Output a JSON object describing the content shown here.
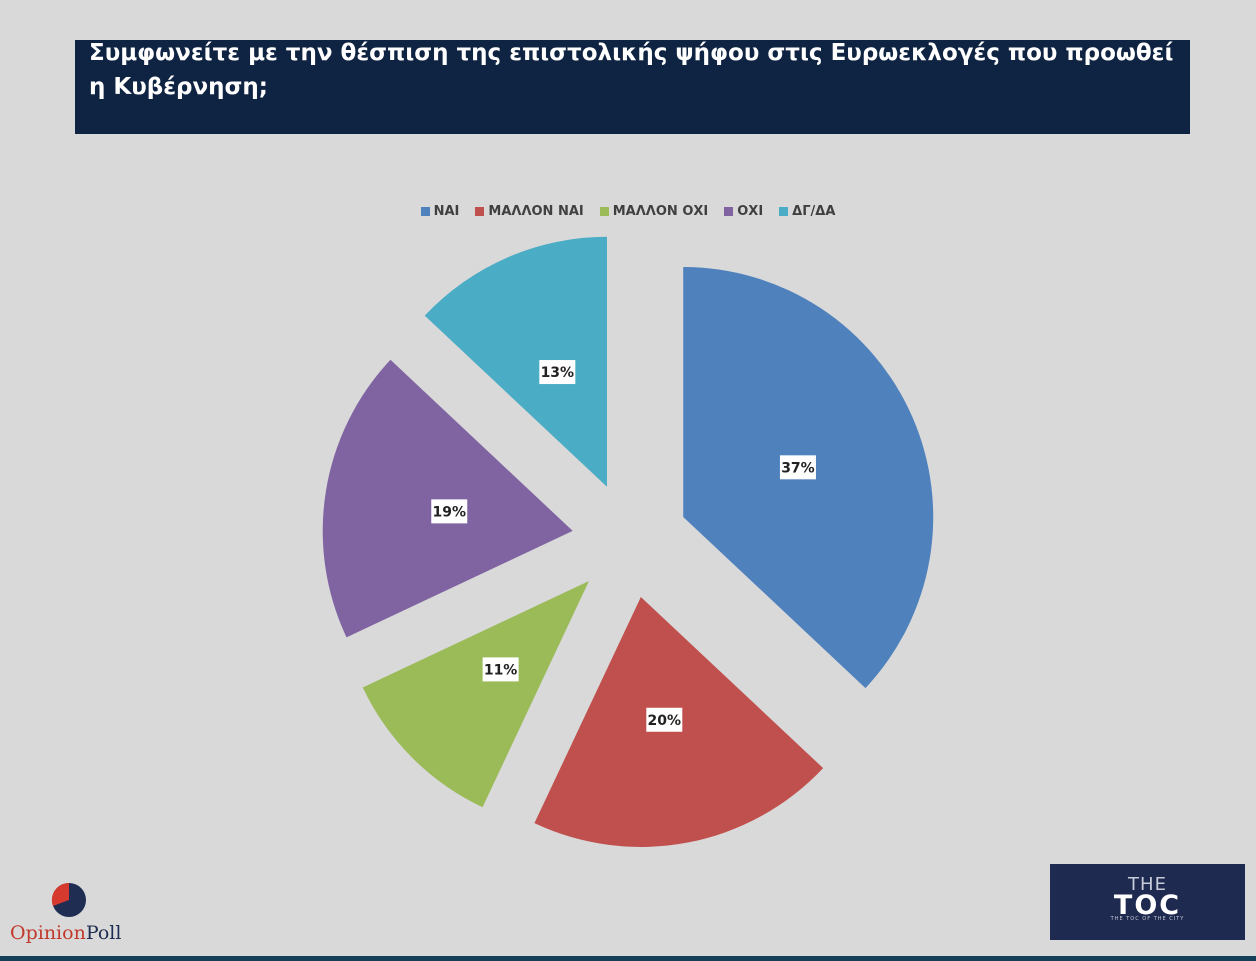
{
  "title": "Συμφωνείτε με την θέσπιση της επιστολικής ψήφου στις Ευρωεκλογές που προωθεί η Κυβέρνηση;",
  "chart_data": {
    "type": "pie",
    "title": "Συμφωνείτε με την θέσπιση της επιστολικής ψήφου στις Ευρωεκλογές που προωθεί η Κυβέρνηση;",
    "legend_position": "top",
    "exploded": true,
    "slices": [
      {
        "label": "ΝΑΙ",
        "value": 37,
        "display": "37%",
        "color": "#4f81bd"
      },
      {
        "label": "ΜΑΛΛΟΝ ΝΑΙ",
        "value": 20,
        "display": "20%",
        "color": "#c0504d"
      },
      {
        "label": "ΜΑΛΛΟΝ ΟΧΙ",
        "value": 11,
        "display": "11%",
        "color": "#9bbb59"
      },
      {
        "label": "ΟΧΙ",
        "value": 19,
        "display": "19%",
        "color": "#8064a2"
      },
      {
        "label": "ΔΓ/ΔΑ",
        "value": 13,
        "display": "13%",
        "color": "#4bacc6"
      }
    ]
  },
  "logos": {
    "opinion_poll": {
      "part1": "Opinion",
      "part2": "Poll"
    },
    "the_toc": {
      "the": "THE",
      "main": "TOC",
      "sub": "THE TOC OF THE CITY"
    }
  }
}
